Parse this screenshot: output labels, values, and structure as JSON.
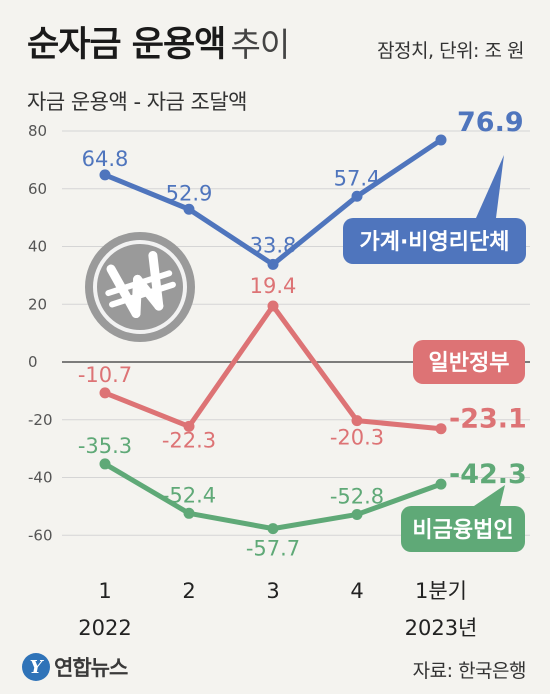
{
  "header": {
    "title_bold": "순자금 운용액",
    "title_light": "추이",
    "unit": "잠정치, 단위: 조 원",
    "subtitle": "자금 운용액 - 자금 조달액"
  },
  "footer": {
    "logo_mark": "Y",
    "logo_text": "연합뉴스",
    "source": "자료: 한국은행"
  },
  "decor": {
    "coin_icon": "won-coin-icon"
  },
  "colors": {
    "blue": "#4f75bd",
    "red": "#dd7375",
    "green": "#5fa977",
    "zero_line": "#555555",
    "grid": "#d5d5d5"
  },
  "chart_data": {
    "type": "line",
    "title": "순자금 운용액 추이",
    "subtitle": "자금 운용액 - 자금 조달액",
    "categories": [
      "1",
      "2",
      "3",
      "4",
      "1분기"
    ],
    "year_labels": [
      "2022",
      "",
      "",
      "",
      "2023년"
    ],
    "ylim": [
      -65,
      80
    ],
    "yticks": [
      80,
      60,
      40,
      20,
      0,
      -20,
      -40,
      -60
    ],
    "grid": true,
    "series": [
      {
        "name": "가계·비영리단체",
        "values": [
          64.8,
          52.9,
          33.8,
          57.4,
          76.9
        ],
        "labels": [
          "64.8",
          "52.9",
          "33.8",
          "57.4",
          "76.9"
        ],
        "color": "#4f75bd"
      },
      {
        "name": "일반정부",
        "values": [
          -10.7,
          -22.3,
          19.4,
          -20.3,
          -23.1
        ],
        "labels": [
          "-10.7",
          "-22.3",
          "19.4",
          "-20.3",
          "-23.1"
        ],
        "color": "#dd7375"
      },
      {
        "name": "비금융법인",
        "values": [
          -35.3,
          -52.4,
          -57.7,
          -52.8,
          -42.3
        ],
        "labels": [
          "-35.3",
          "-52.4",
          "-57.7",
          "-52.8",
          "-42.3"
        ],
        "color": "#5fa977"
      }
    ]
  }
}
